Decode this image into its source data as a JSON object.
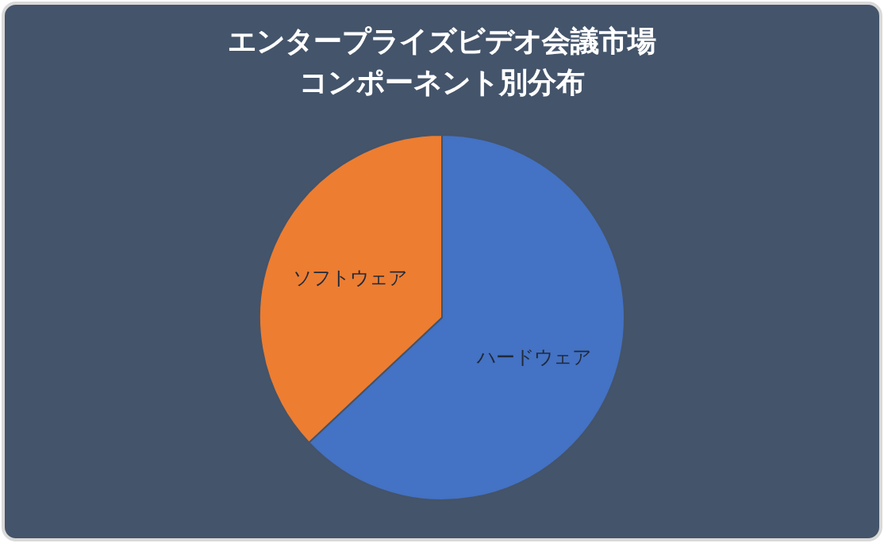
{
  "chart_data": {
    "type": "pie",
    "title": "エンタープライズビデオ会議市場コンポーネント別分布",
    "categories": [
      "ハードウェア",
      "ソフトウェア"
    ],
    "values": [
      63,
      37
    ],
    "colors": [
      "#4472c4",
      "#ed7d31"
    ]
  }
}
